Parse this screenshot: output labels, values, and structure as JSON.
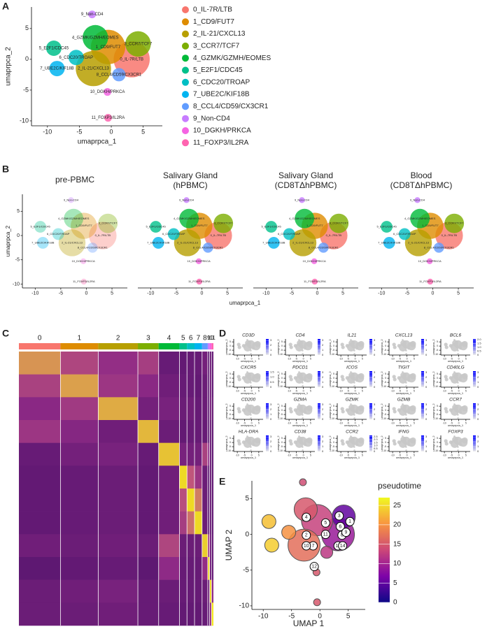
{
  "chart_data": [
    {
      "type": "scatter",
      "panel": "A",
      "x_label": "umaprpca_1",
      "y_label": "umaprpca_2",
      "xlim": [
        -12.5,
        8
      ],
      "ylim": [
        -10.8,
        8.5
      ],
      "xticks": [
        -10,
        -5,
        0,
        5
      ],
      "yticks": [
        -10,
        -5,
        0,
        5
      ],
      "series": [
        {
          "name": "0_IL-7R/LTB",
          "color": "#F8766D",
          "x": [
            3.2
          ],
          "y": [
            0
          ],
          "size": [
            22
          ]
        },
        {
          "name": "1_CD9/FUT7",
          "color": "#DE8C00",
          "x": [
            -0.5
          ],
          "y": [
            2
          ],
          "size": [
            20
          ]
        },
        {
          "name": "2_IL-21/CXCL13",
          "color": "#B79F00",
          "x": [
            -2.8
          ],
          "y": [
            -1.5
          ],
          "size": [
            21
          ]
        },
        {
          "name": "3_CCR7/TCF7",
          "color": "#7CAE00",
          "x": [
            4.2
          ],
          "y": [
            2.5
          ],
          "size": [
            11
          ]
        },
        {
          "name": "4_GZMK/GZMH/EOMES",
          "color": "#00BA38",
          "x": [
            -2.5
          ],
          "y": [
            3.5
          ],
          "size": [
            11
          ]
        },
        {
          "name": "5_E2F1/CDC45",
          "color": "#00C08B",
          "x": [
            -9
          ],
          "y": [
            1.8
          ],
          "size": [
            4
          ]
        },
        {
          "name": "6_CDC20/TROAP",
          "color": "#00BFC4",
          "x": [
            -5.5
          ],
          "y": [
            0.3
          ],
          "size": [
            4
          ]
        },
        {
          "name": "7_UBE2C/KIF18B",
          "color": "#00B4F0",
          "x": [
            -8.5
          ],
          "y": [
            -1.5
          ],
          "size": [
            4
          ]
        },
        {
          "name": "8_CCL4/CD59/CX3CR1",
          "color": "#619CFF",
          "x": [
            1.2
          ],
          "y": [
            -2.5
          ],
          "size": [
            3
          ]
        },
        {
          "name": "9_Non-CD4",
          "color": "#C77CFF",
          "x": [
            -3
          ],
          "y": [
            7.3
          ],
          "size": [
            1
          ]
        },
        {
          "name": "10_DGKH/PRKCA",
          "color": "#F564E3",
          "x": [
            -0.6
          ],
          "y": [
            -5.3
          ],
          "size": [
            1
          ]
        },
        {
          "name": "11_FOXP3/IL2RA",
          "color": "#FF64B0",
          "x": [
            -0.5
          ],
          "y": [
            -9.5
          ],
          "size": [
            1
          ]
        }
      ]
    },
    {
      "type": "small-multiples",
      "panel": "B",
      "x_label": "umaprpca_1",
      "y_label": "umaprpca_2",
      "xlim": [
        -12.5,
        8
      ],
      "ylim": [
        -10.8,
        8.5
      ],
      "xticks": [
        -10,
        -5,
        0,
        5
      ],
      "yticks": [
        -10,
        -5,
        0,
        5
      ],
      "panels": [
        [
          "pre-PBMC"
        ],
        [
          "Salivary Gland",
          "(hPBMC)"
        ],
        [
          "Salivary Gland",
          "(CD8TΔhPBMC)"
        ],
        [
          "Blood",
          "(CD8TΔhPBMC)"
        ]
      ]
    },
    {
      "type": "heatmap",
      "panel": "C",
      "categories": [
        "0",
        "1",
        "2",
        "3",
        "4",
        "5",
        "6",
        "7",
        "8",
        "9",
        "10",
        "11"
      ],
      "values": [
        [
          2.0,
          1.0,
          0.4,
          0.8,
          -0.6,
          -0.7,
          -0.6,
          -0.6,
          -0.3,
          -0.8,
          -0.5,
          -0.6
        ],
        [
          0.9,
          2.1,
          0.6,
          0.2,
          -0.4,
          -0.6,
          -0.6,
          -0.7,
          -0.5,
          -0.8,
          -0.4,
          -0.7
        ],
        [
          0.2,
          0.7,
          2.2,
          -0.3,
          -0.2,
          -0.5,
          -0.4,
          -0.6,
          -0.5,
          -0.8,
          -0.3,
          -0.5
        ],
        [
          0.6,
          0.1,
          -0.4,
          2.3,
          -0.5,
          -0.7,
          -0.6,
          -0.6,
          -0.6,
          -0.9,
          -0.6,
          -0.7
        ],
        [
          -0.6,
          -0.3,
          -0.2,
          -0.6,
          2.4,
          -0.2,
          -0.3,
          -0.3,
          0.9,
          0.2,
          -0.6,
          -0.7
        ],
        [
          -0.7,
          -0.6,
          -0.5,
          -0.7,
          -0.4,
          2.6,
          1.4,
          0.6,
          -0.5,
          -0.8,
          -0.6,
          -0.7
        ],
        [
          -0.7,
          -0.6,
          -0.5,
          -0.7,
          -0.4,
          1.2,
          2.6,
          1.8,
          -0.5,
          -0.8,
          -0.6,
          -0.7
        ],
        [
          -0.7,
          -0.6,
          -0.5,
          -0.7,
          -0.4,
          0.8,
          1.7,
          2.6,
          -0.5,
          -0.8,
          -0.6,
          -0.7
        ],
        [
          -0.4,
          -0.5,
          -0.4,
          -0.5,
          1.0,
          -0.5,
          -0.5,
          -0.5,
          2.5,
          0.6,
          -0.4,
          -0.6
        ],
        [
          -0.8,
          -0.7,
          -0.6,
          -0.8,
          0.3,
          -0.6,
          -0.6,
          -0.6,
          0.4,
          2.6,
          -0.4,
          -0.6
        ],
        [
          -0.5,
          -0.4,
          -0.2,
          -0.6,
          -0.5,
          -0.6,
          -0.6,
          -0.6,
          -0.5,
          -0.5,
          2.6,
          0.3
        ],
        [
          -0.5,
          -0.5,
          -0.4,
          -0.6,
          -0.6,
          -0.7,
          -0.7,
          -0.7,
          -0.6,
          -0.7,
          0.4,
          2.7
        ]
      ]
    },
    {
      "type": "feature",
      "panel": "D",
      "x_label": "umaprpca_1",
      "y_label": "umaprpca_2",
      "color": "#0000FF",
      "xticks": [
        -10,
        -5,
        0,
        5
      ],
      "yticks": [
        -10,
        -5,
        0,
        5
      ],
      "genes": [
        {
          "name": "CD3D",
          "lim": [
            0,
            3.3
          ],
          "ticks": [
            0,
            1,
            2,
            3
          ]
        },
        {
          "name": "CD4",
          "lim": [
            0,
            3.3
          ],
          "ticks": [
            0,
            1,
            2,
            3
          ]
        },
        {
          "name": "IL21",
          "lim": [
            0,
            3.3
          ],
          "ticks": [
            0,
            1,
            2,
            3
          ]
        },
        {
          "name": "CXCL13",
          "lim": [
            0,
            3.3
          ],
          "ticks": [
            0,
            1,
            2,
            3
          ]
        },
        {
          "name": "BCL6",
          "lim": [
            0,
            2.1
          ],
          "ticks": [
            0,
            {
              "value": 0.5,
              "label": "0.5"
            },
            {
              "value": 1,
              "label": "1.0"
            },
            {
              "value": 1.5,
              "label": "1.5"
            },
            {
              "value": 2,
              "label": "2.0"
            }
          ]
        },
        {
          "name": "CXCR5",
          "lim": [
            0,
            1.6
          ],
          "ticks": [
            0,
            0.5,
            {
              "value": 1,
              "label": "1.0"
            },
            1.5
          ]
        },
        {
          "name": "PDCD1",
          "lim": [
            0,
            3.3
          ],
          "ticks": [
            0,
            1,
            2,
            3
          ]
        },
        {
          "name": "ICOS",
          "lim": [
            0,
            3.3
          ],
          "ticks": [
            0,
            1,
            2,
            3
          ]
        },
        {
          "name": "TIGIT",
          "lim": [
            0,
            3.3
          ],
          "ticks": [
            0,
            1,
            2,
            3
          ]
        },
        {
          "name": "CD40LG",
          "lim": [
            0,
            3.3
          ],
          "ticks": [
            0,
            1,
            2,
            3
          ]
        },
        {
          "name": "CD200",
          "lim": [
            0,
            3.3
          ],
          "ticks": [
            0,
            1,
            2,
            3
          ]
        },
        {
          "name": "GZMA",
          "lim": [
            0,
            3.3
          ],
          "ticks": [
            0,
            1,
            2,
            3
          ]
        },
        {
          "name": "GZMK",
          "lim": [
            0,
            3.3
          ],
          "ticks": [
            0,
            1,
            2,
            3
          ]
        },
        {
          "name": "GZMB",
          "lim": [
            0,
            3.3
          ],
          "ticks": [
            0,
            1,
            2,
            3
          ]
        },
        {
          "name": "CCR7",
          "lim": [
            0,
            3.3
          ],
          "ticks": [
            0,
            1,
            2,
            3
          ]
        },
        {
          "name": "HLA-DRA",
          "lim": [
            0,
            3.3
          ],
          "ticks": [
            0,
            1,
            2,
            3
          ]
        },
        {
          "name": "CD38",
          "lim": [
            0,
            3.3
          ],
          "ticks": [
            0,
            1,
            2,
            3
          ]
        },
        {
          "name": "CCR2",
          "lim": [
            0,
            2.7
          ],
          "ticks": [
            0,
            0.5,
            {
              "value": 1,
              "label": "1.0"
            },
            1.5,
            {
              "value": 2,
              "label": "2.0"
            },
            2.5
          ]
        },
        {
          "name": "IFNG",
          "lim": [
            0,
            3.3
          ],
          "ticks": [
            0,
            1,
            2,
            3
          ]
        },
        {
          "name": "FOXP3",
          "lim": [
            0,
            3.3
          ],
          "ticks": [
            0,
            1,
            2,
            3
          ]
        }
      ]
    },
    {
      "type": "trajectory",
      "panel": "E",
      "x_label": "UMAP 1",
      "y_label": "UMAP 2",
      "xlim": [
        -12,
        8
      ],
      "ylim": [
        -10.5,
        7.5
      ],
      "xticks": [
        -10,
        -5,
        0,
        5
      ],
      "yticks": [
        -10,
        -5,
        0,
        5
      ],
      "legend_title": "pseudotime",
      "colorbar_lim": [
        0,
        27
      ],
      "colorbar_ticks": [
        0,
        5,
        10,
        15,
        20,
        25
      ],
      "pseudotime": [
        9,
        13,
        17,
        5,
        15,
        23,
        20,
        24,
        12,
        14,
        15,
        15
      ],
      "nodes": {
        "labels": [
          "1",
          "2",
          "3",
          "4",
          "5",
          "6",
          "7",
          "8",
          "9",
          "10",
          "11",
          "12",
          "13",
          "14"
        ],
        "x": [
          5.3,
          -2.4,
          3.4,
          -2.4,
          1.0,
          3.6,
          -1.2,
          3.9,
          4.6,
          -2.4,
          1.0,
          -1.0,
          3.2,
          4.0
        ],
        "y": [
          1.8,
          -0.1,
          2.6,
          2.4,
          1.6,
          1.1,
          -1.6,
          -0.1,
          0.3,
          -1.6,
          0.0,
          -4.5,
          -1.6,
          -1.6
        ]
      }
    }
  ]
}
